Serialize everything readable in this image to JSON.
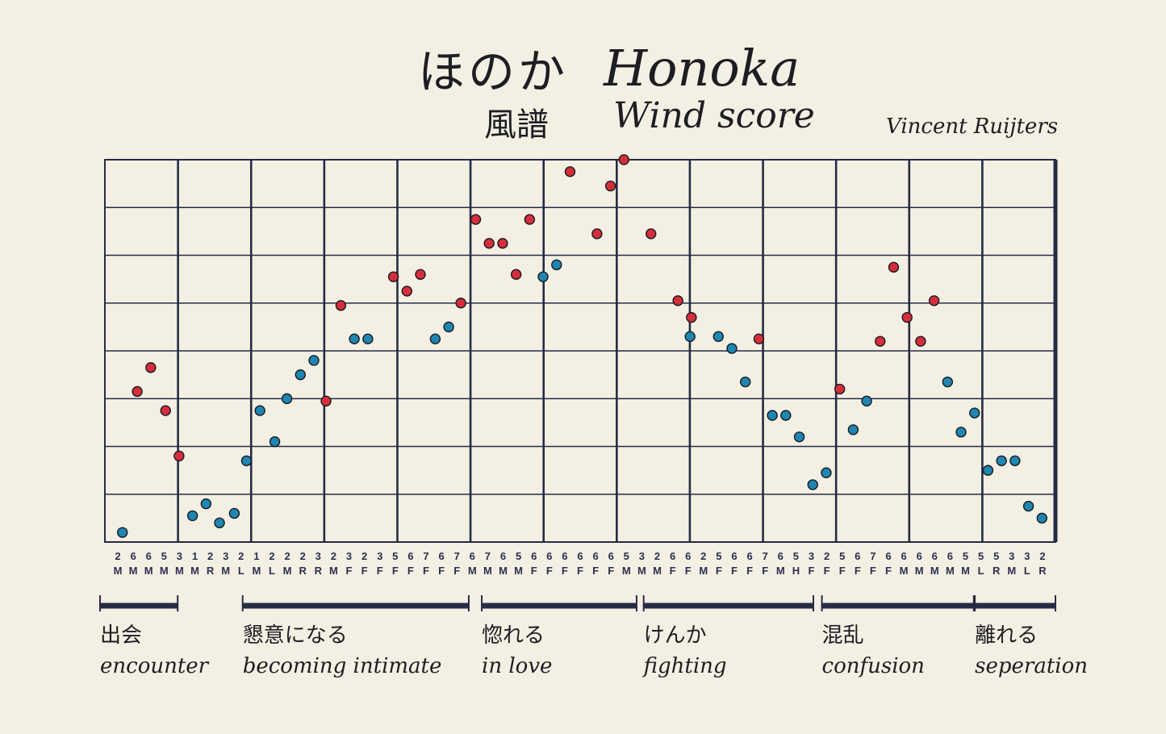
{
  "title_jp": "ほのか",
  "title_en": "Honoka",
  "subtitle_jp": "風譜",
  "subtitle_en": "Wind score",
  "author": "Vincent Ruijters",
  "colors": {
    "red": "#d42e3b",
    "blue": "#1e86b0",
    "ink": "#262b45",
    "paper": "#f3efe2"
  },
  "chart_data": {
    "type": "scatter",
    "grid": true,
    "ylim": [
      0,
      8
    ],
    "x_columns": 61,
    "ticks": [
      {
        "num": "2",
        "let": "M"
      },
      {
        "num": "6",
        "let": "M"
      },
      {
        "num": "6",
        "let": "M"
      },
      {
        "num": "5",
        "let": "M"
      },
      {
        "num": "3",
        "let": "M"
      },
      {
        "num": "1",
        "let": "M"
      },
      {
        "num": "2",
        "let": "R"
      },
      {
        "num": "3",
        "let": "M"
      },
      {
        "num": "2",
        "let": "L"
      },
      {
        "num": "1",
        "let": "M"
      },
      {
        "num": "2",
        "let": "L"
      },
      {
        "num": "2",
        "let": "M"
      },
      {
        "num": "2",
        "let": "R"
      },
      {
        "num": "3",
        "let": "R"
      },
      {
        "num": "2",
        "let": "M"
      },
      {
        "num": "3",
        "let": "F"
      },
      {
        "num": "2",
        "let": "F"
      },
      {
        "num": "3",
        "let": "F"
      },
      {
        "num": "5",
        "let": "F"
      },
      {
        "num": "6",
        "let": "F"
      },
      {
        "num": "7",
        "let": "F"
      },
      {
        "num": "6",
        "let": "F"
      },
      {
        "num": "7",
        "let": "F"
      },
      {
        "num": "6",
        "let": "M"
      },
      {
        "num": "7",
        "let": "M"
      },
      {
        "num": "6",
        "let": "M"
      },
      {
        "num": "5",
        "let": "M"
      },
      {
        "num": "6",
        "let": "F"
      },
      {
        "num": "6",
        "let": "F"
      },
      {
        "num": "6",
        "let": "F"
      },
      {
        "num": "6",
        "let": "F"
      },
      {
        "num": "6",
        "let": "F"
      },
      {
        "num": "6",
        "let": "F"
      },
      {
        "num": "5",
        "let": "M"
      },
      {
        "num": "3",
        "let": "M"
      },
      {
        "num": "2",
        "let": "M"
      },
      {
        "num": "6",
        "let": "F"
      },
      {
        "num": "6",
        "let": "F"
      },
      {
        "num": "2",
        "let": "M"
      },
      {
        "num": "5",
        "let": "F"
      },
      {
        "num": "6",
        "let": "F"
      },
      {
        "num": "6",
        "let": "F"
      },
      {
        "num": "7",
        "let": "F"
      },
      {
        "num": "6",
        "let": "M"
      },
      {
        "num": "5",
        "let": "H"
      },
      {
        "num": "3",
        "let": "F"
      },
      {
        "num": "2",
        "let": "F"
      },
      {
        "num": "5",
        "let": "F"
      },
      {
        "num": "6",
        "let": "F"
      },
      {
        "num": "7",
        "let": "F"
      },
      {
        "num": "6",
        "let": "F"
      },
      {
        "num": "6",
        "let": "M"
      },
      {
        "num": "6",
        "let": "M"
      },
      {
        "num": "6",
        "let": "M"
      },
      {
        "num": "6",
        "let": "M"
      },
      {
        "num": "5",
        "let": "M"
      },
      {
        "num": "5",
        "let": "L"
      },
      {
        "num": "5",
        "let": "R"
      },
      {
        "num": "3",
        "let": "M"
      },
      {
        "num": "3",
        "let": "L"
      },
      {
        "num": "2",
        "let": "R"
      }
    ],
    "series": [
      {
        "color": "red",
        "points": [
          [
            2.4,
            3.15
          ],
          [
            3.4,
            3.65
          ],
          [
            4.5,
            2.75
          ],
          [
            5.5,
            1.8
          ],
          [
            16.4,
            2.95
          ],
          [
            17.5,
            4.95
          ],
          [
            21.4,
            5.55
          ],
          [
            22.4,
            5.25
          ],
          [
            23.4,
            5.6
          ],
          [
            26.4,
            5.0
          ],
          [
            27.5,
            6.75
          ],
          [
            28.5,
            6.25
          ],
          [
            29.5,
            6.25
          ],
          [
            30.5,
            5.6
          ],
          [
            31.5,
            6.75
          ],
          [
            34.5,
            7.75
          ],
          [
            36.5,
            6.45
          ],
          [
            37.5,
            7.45
          ],
          [
            38.5,
            8.0
          ],
          [
            40.5,
            6.45
          ],
          [
            42.5,
            5.05
          ],
          [
            43.5,
            4.7
          ],
          [
            48.5,
            4.25
          ],
          [
            54.5,
            3.2
          ],
          [
            57.5,
            4.2
          ],
          [
            58.5,
            5.75
          ],
          [
            59.5,
            4.7
          ],
          [
            60.5,
            4.2
          ],
          [
            61.5,
            5.05
          ]
        ]
      },
      {
        "color": "blue",
        "points": [
          [
            1.3,
            0.2
          ],
          [
            6.5,
            0.55
          ],
          [
            7.5,
            0.8
          ],
          [
            8.5,
            0.4
          ],
          [
            9.6,
            0.6
          ],
          [
            10.5,
            1.7
          ],
          [
            11.5,
            2.75
          ],
          [
            12.6,
            2.1
          ],
          [
            13.5,
            3.0
          ],
          [
            14.5,
            3.5
          ],
          [
            15.5,
            3.8
          ],
          [
            18.5,
            4.25
          ],
          [
            19.5,
            4.25
          ],
          [
            24.5,
            4.25
          ],
          [
            25.5,
            4.5
          ],
          [
            32.5,
            5.55
          ],
          [
            33.5,
            5.8
          ],
          [
            43.4,
            4.3
          ],
          [
            45.5,
            4.3
          ],
          [
            46.5,
            4.05
          ],
          [
            47.5,
            3.35
          ],
          [
            49.5,
            2.65
          ],
          [
            50.5,
            2.65
          ],
          [
            51.5,
            2.2
          ],
          [
            52.5,
            1.2
          ],
          [
            53.5,
            1.45
          ],
          [
            55.5,
            2.35
          ],
          [
            56.5,
            2.95
          ],
          [
            62.5,
            3.35
          ],
          [
            63.5,
            2.3
          ],
          [
            64.5,
            2.7
          ],
          [
            65.5,
            1.5
          ],
          [
            66.5,
            1.7
          ],
          [
            67.5,
            1.7
          ],
          [
            68.5,
            0.75
          ],
          [
            69.5,
            0.5
          ]
        ]
      }
    ],
    "sections": [
      {
        "jp": "出会",
        "en": "encounter",
        "from": 0,
        "to": 4.9
      },
      {
        "jp": "懇意になる",
        "en": "becoming intimate",
        "from": 9.6,
        "to": 24.5
      },
      {
        "jp": "惚れる",
        "en": "in love",
        "from": 25.7,
        "to": 35.8
      },
      {
        "jp": "けんか",
        "en": "fighting",
        "from": 36.6,
        "to": 47.7
      },
      {
        "jp": "混乱",
        "en": "confusion",
        "from": 48.6,
        "to": 58.5
      },
      {
        "jp": "離れる",
        "en": "seperation",
        "from": 58.9,
        "to": 64
      }
    ]
  }
}
